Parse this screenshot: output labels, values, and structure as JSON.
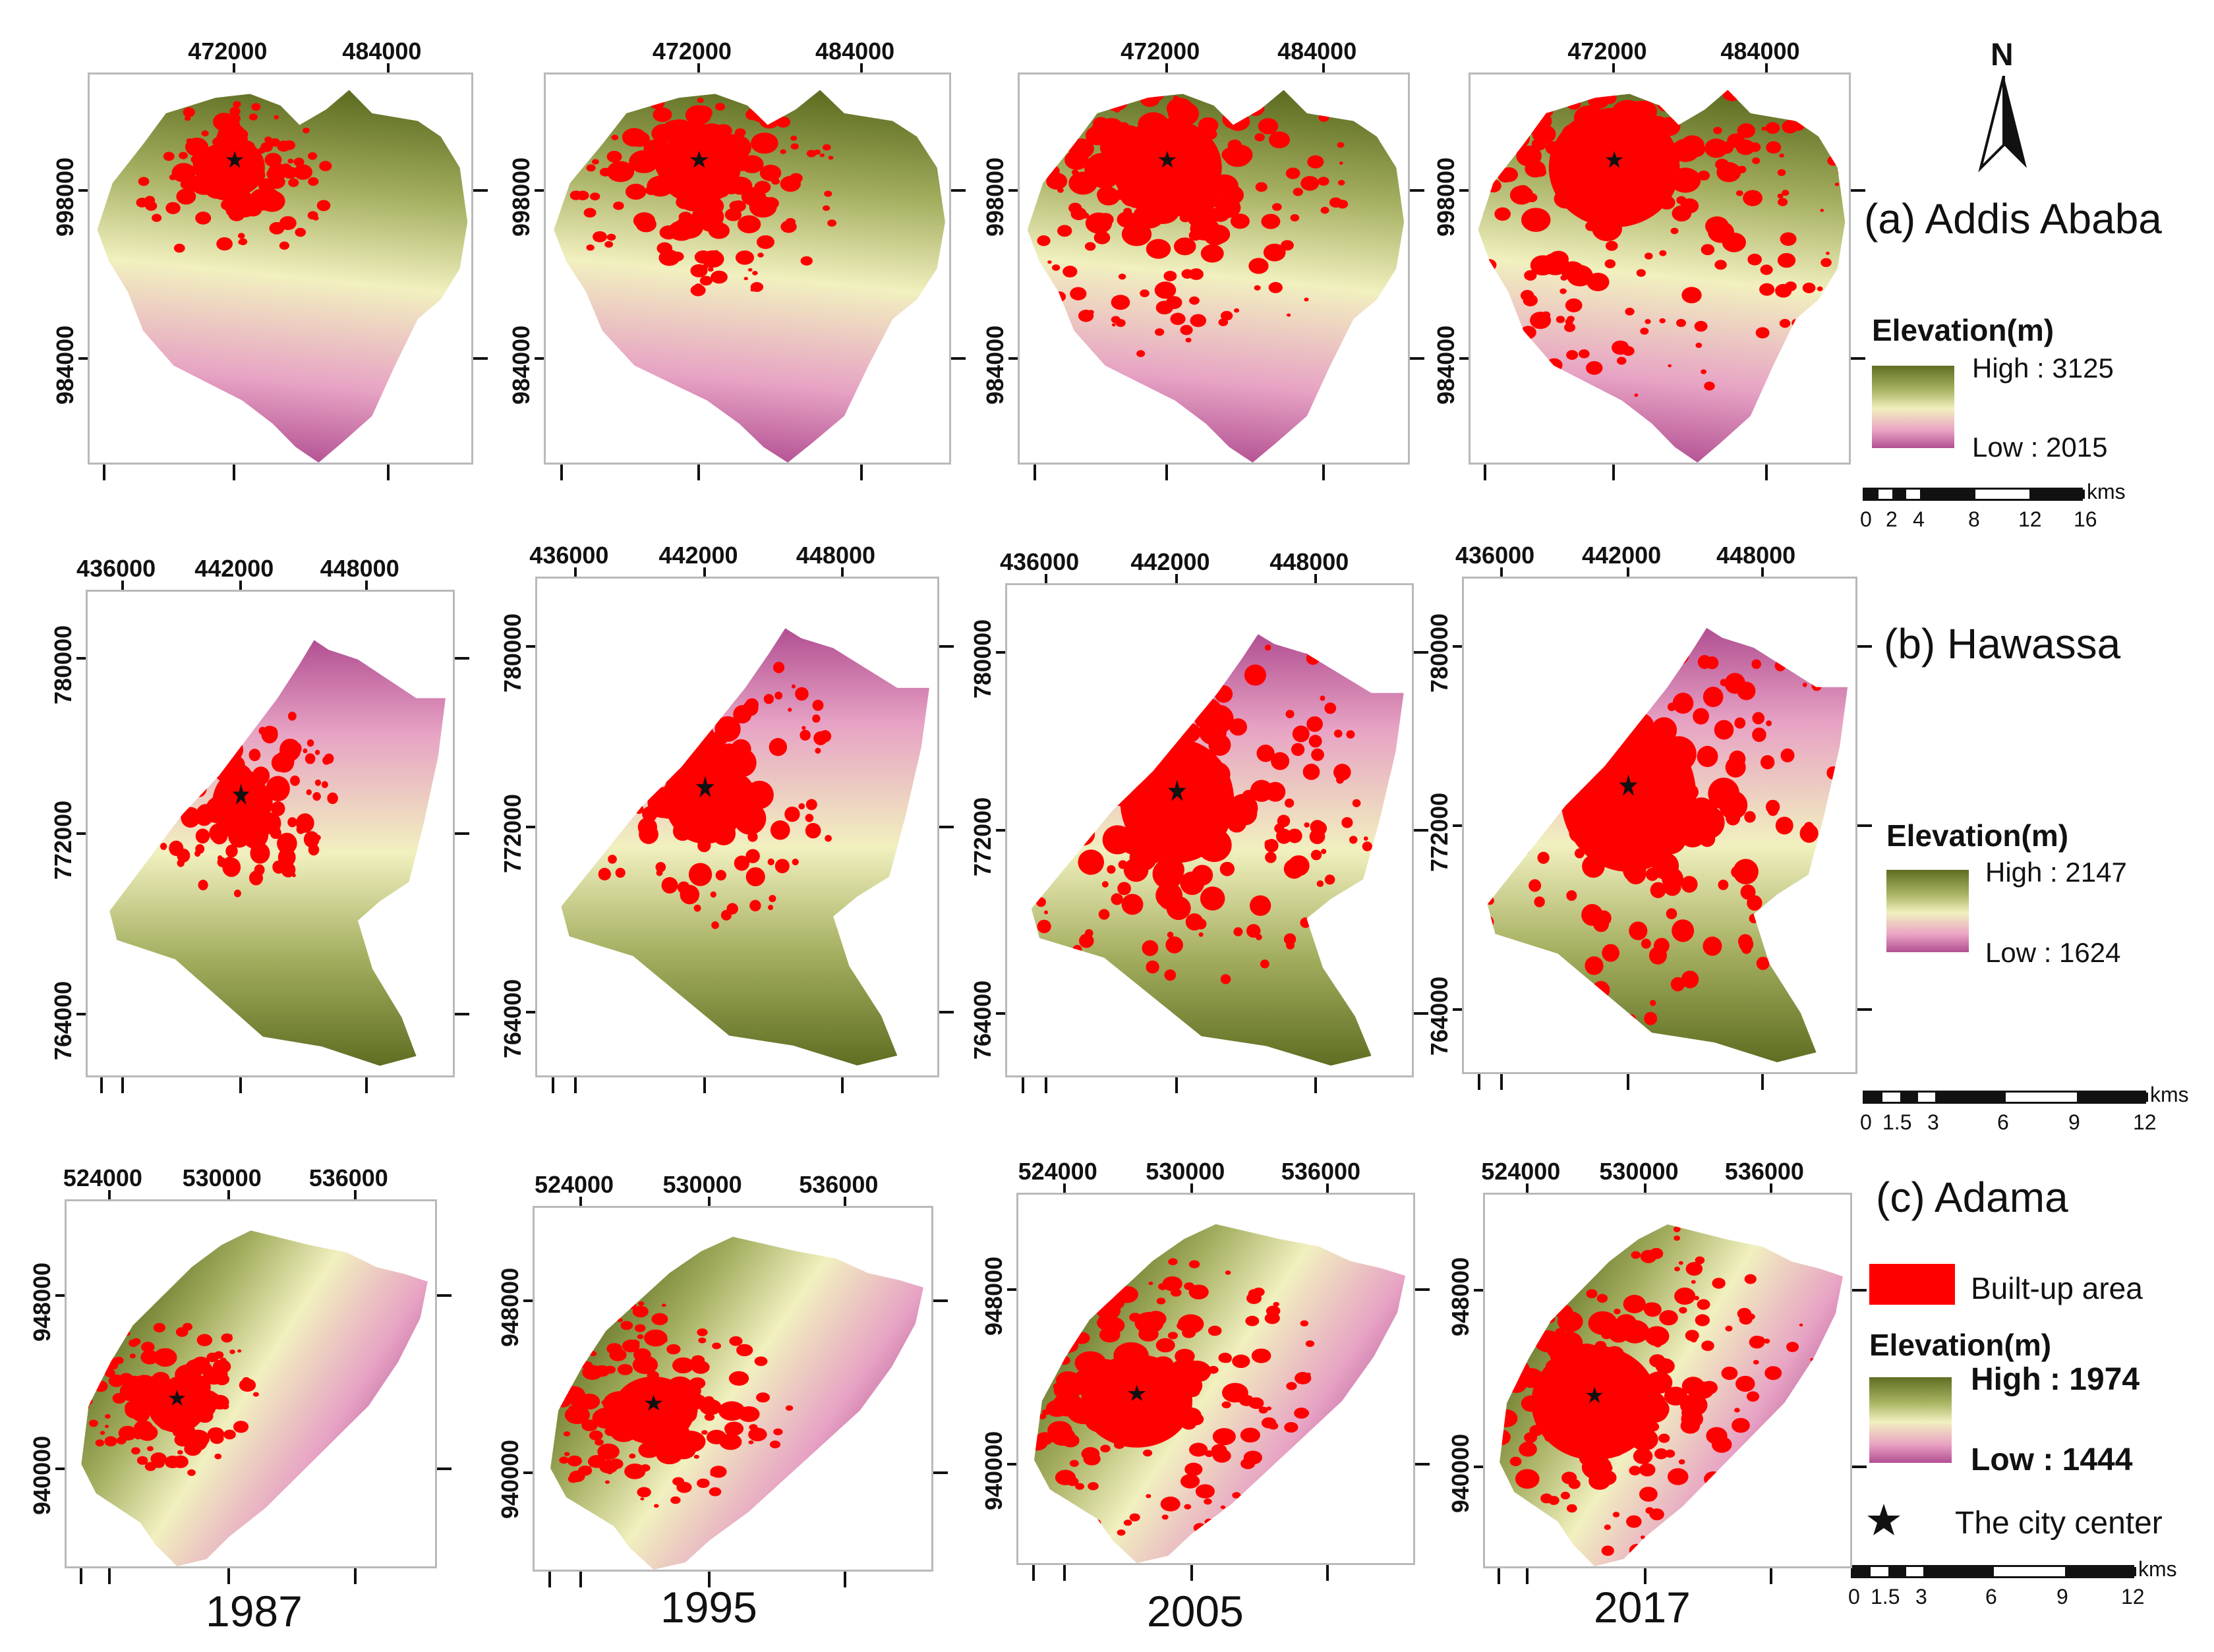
{
  "years": [
    "1987",
    "1995",
    "2005",
    "2017"
  ],
  "rows": [
    {
      "id": "addis",
      "label": "(a) Addis Ababa",
      "x_ticks": [
        "472000",
        "484000"
      ],
      "y_ticks": [
        "998000",
        "984000"
      ],
      "legend_title": "Elevation(m)",
      "high": "High : 3125",
      "low": "Low : 2015",
      "scale_labels": [
        "0",
        "2",
        "4",
        "8",
        "12",
        "16"
      ],
      "scale_unit": "kms"
    },
    {
      "id": "hawassa",
      "label": "(b) Hawassa",
      "x_ticks": [
        "436000",
        "442000",
        "448000"
      ],
      "y_ticks": [
        "780000",
        "772000",
        "764000"
      ],
      "legend_title": "Elevation(m)",
      "high": "High : 2147",
      "low": "Low : 1624",
      "scale_labels": [
        "0",
        "1.5",
        "3",
        "6",
        "9",
        "12"
      ],
      "scale_unit": "kms"
    },
    {
      "id": "adama",
      "label": "(c) Adama",
      "x_ticks": [
        "524000",
        "530000",
        "536000"
      ],
      "y_ticks": [
        "948000",
        "940000"
      ],
      "legend_title": "Elevation(m)",
      "high": "High : 1974",
      "low": "Low : 1444",
      "scale_labels": [
        "0",
        "1.5",
        "3",
        "6",
        "9",
        "12"
      ],
      "scale_unit": "kms",
      "builtup_label": "Built-up area",
      "center_label": "The city center"
    }
  ],
  "north_label": "N",
  "colors": {
    "builtup": "#ff0000",
    "elev_high": "#5e6e22",
    "elev_mid": "#f1f0bf",
    "elev_low": "#b24f92"
  },
  "builtup_extent": {
    "addis": [
      0.28,
      0.45,
      0.72,
      0.95
    ],
    "hawassa": [
      0.1,
      0.25,
      0.55,
      0.85
    ],
    "adama": [
      0.1,
      0.2,
      0.55,
      0.9
    ]
  }
}
